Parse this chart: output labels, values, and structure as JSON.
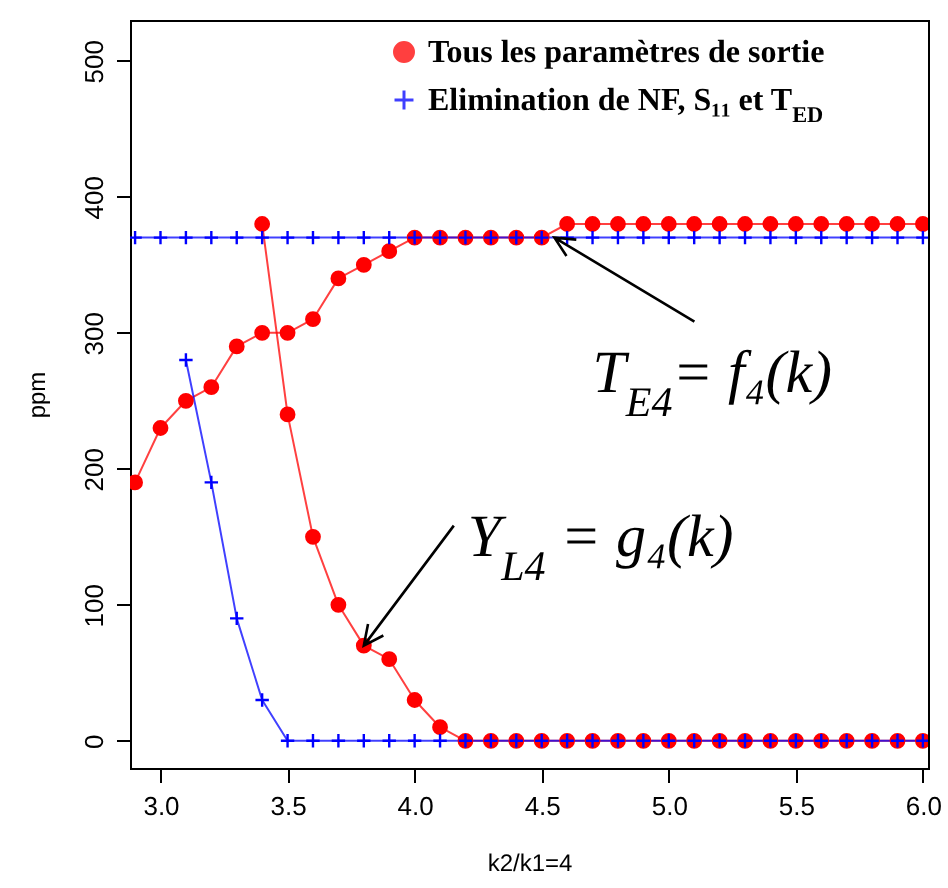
{
  "chart_data": {
    "type": "line",
    "xlabel": "k2/k1=4",
    "ylabel": "ppm",
    "x": [
      2.9,
      3.0,
      3.1,
      3.2,
      3.3,
      3.4,
      3.5,
      3.6,
      3.7,
      3.8,
      3.9,
      4.0,
      4.1,
      4.2,
      4.3,
      4.4,
      4.5,
      4.6,
      4.7,
      4.8,
      4.9,
      5.0,
      5.1,
      5.2,
      5.3,
      5.4,
      5.5,
      5.6,
      5.7,
      5.8,
      5.9,
      6.0
    ],
    "series": [
      {
        "name": "Tous les paramètres de sortie",
        "color": "#ff0000",
        "marker": "circle",
        "values": [
          190,
          230,
          250,
          260,
          290,
          300,
          300,
          310,
          340,
          350,
          360,
          370,
          370,
          370,
          370,
          370,
          370,
          380,
          380,
          380,
          380,
          380,
          380,
          380,
          380,
          380,
          380,
          380,
          380,
          380,
          380,
          380
        ]
      },
      {
        "color": "#ff0000",
        "marker": "circle",
        "values": [
          null,
          null,
          null,
          null,
          null,
          380,
          240,
          150,
          100,
          70,
          60,
          30,
          10,
          0,
          0,
          0,
          0,
          0,
          0,
          0,
          0,
          0,
          0,
          0,
          0,
          0,
          0,
          0,
          0,
          0,
          0,
          0
        ]
      },
      {
        "name": "Elimination de NF, S₁₁ et T$_{ED}$",
        "color": "#0000ff",
        "marker": "cross",
        "values": [
          370,
          370,
          370,
          370,
          370,
          370,
          370,
          370,
          370,
          370,
          370,
          370,
          370,
          370,
          370,
          370,
          370,
          370,
          370,
          370,
          370,
          370,
          370,
          370,
          370,
          370,
          370,
          370,
          370,
          370,
          370,
          370
        ]
      },
      {
        "color": "#0000ff",
        "marker": "cross",
        "values": [
          null,
          null,
          280,
          190,
          90,
          30,
          0,
          0,
          0,
          0,
          0,
          0,
          0,
          0,
          0,
          0,
          0,
          0,
          0,
          0,
          0,
          0,
          0,
          0,
          0,
          0,
          0,
          0,
          0,
          0,
          0,
          0
        ]
      }
    ],
    "annotations": [
      {
        "text": "T$_{E4}$= f₄(k)",
        "x": 4.55,
        "y": 370
      },
      {
        "text": "Y$_{L4}$ = g₄(k)",
        "x": 3.8,
        "y": 70
      }
    ],
    "xlim": [
      2.88,
      6.02
    ],
    "ylim": [
      -20,
      530
    ],
    "xticks": [
      {
        "value": 3,
        "label": "3.0"
      },
      {
        "value": 3.5,
        "label": "3.5"
      },
      {
        "value": 4,
        "label": "4.0"
      },
      {
        "value": 4.5,
        "label": "4.5"
      },
      {
        "value": 5,
        "label": "5.0"
      },
      {
        "value": 5.5,
        "label": "5.5"
      },
      {
        "value": 6,
        "label": "6.0"
      }
    ],
    "yticks": [
      0,
      100,
      200,
      300,
      400,
      500
    ],
    "grid": false,
    "legend": "top right",
    "line_style": "solid"
  }
}
